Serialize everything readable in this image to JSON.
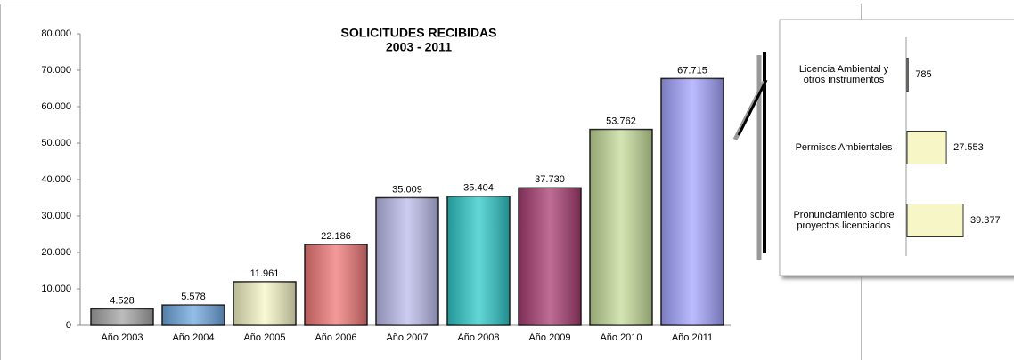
{
  "chart_data": [
    {
      "type": "bar",
      "title": "SOLICITUDES RECIBIDAS",
      "subtitle": "2003 - 2011",
      "categories": [
        "Año 2003",
        "Año 2004",
        "Año 2005",
        "Año 2006",
        "Año 2007",
        "Año 2008",
        "Año 2009",
        "Año 2010",
        "Año 2011"
      ],
      "values": [
        4528,
        5578,
        11961,
        22186,
        35009,
        35404,
        37730,
        53762,
        67715
      ],
      "value_labels": [
        "4.528",
        "5.578",
        "11.961",
        "22.186",
        "35.009",
        "35.404",
        "37.730",
        "53.762",
        "67.715"
      ],
      "colors": [
        "#a6a6a6",
        "#6fa8e0",
        "#f6f6c6",
        "#f07878",
        "#bcbcec",
        "#2ec8c8",
        "#a83c70",
        "#c6dc9a",
        "#a4a4ff"
      ],
      "ylim": [
        0,
        80000
      ],
      "yticks": [
        {
          "value": 0,
          "label": "0"
        },
        {
          "value": 10000,
          "label": "10.000"
        },
        {
          "value": 20000,
          "label": "20.000"
        },
        {
          "value": 30000,
          "label": "30.000"
        },
        {
          "value": 40000,
          "label": "40.000"
        },
        {
          "value": 50000,
          "label": "50.000"
        },
        {
          "value": 60000,
          "label": "60.000"
        },
        {
          "value": 70000,
          "label": "70.000"
        },
        {
          "value": 80000,
          "label": "80.000"
        }
      ]
    },
    {
      "type": "hbar",
      "categories": [
        "Licencia Ambiental y otros instrumentos",
        "Permisos Ambientales",
        "Pronunciamiento sobre proyectos licenciados"
      ],
      "values": [
        785,
        27553,
        39377
      ],
      "value_labels": [
        "785",
        "27.553",
        "39.377"
      ],
      "color": "#f6f6c6",
      "xlim": [
        0,
        40000
      ]
    }
  ]
}
